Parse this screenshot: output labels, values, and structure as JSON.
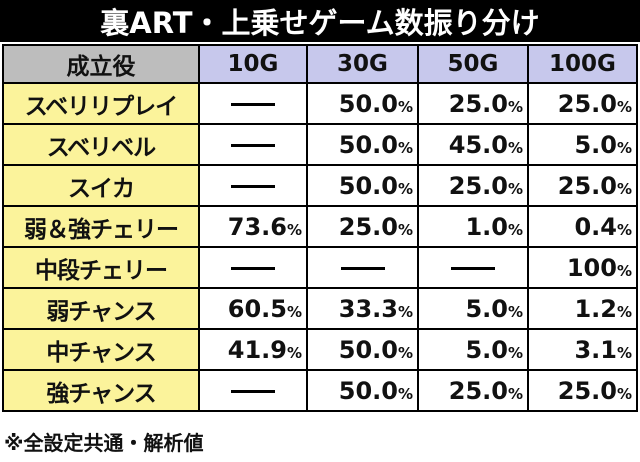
{
  "title": "裏ART・上乗せゲーム数振り分け",
  "columns": [
    "成立役",
    "10G",
    "30G",
    "50G",
    "100G"
  ],
  "rows": [
    {
      "role": "スベリリプレイ",
      "cells": [
        {
          "num": "",
          "unit": ""
        },
        {
          "num": "50.0",
          "unit": "%"
        },
        {
          "num": "25.0",
          "unit": "%"
        },
        {
          "num": "25.0",
          "unit": "%"
        }
      ]
    },
    {
      "role": "スベリベル",
      "cells": [
        {
          "num": "",
          "unit": ""
        },
        {
          "num": "50.0",
          "unit": "%"
        },
        {
          "num": "45.0",
          "unit": "%"
        },
        {
          "num": "5.0",
          "unit": "%"
        }
      ]
    },
    {
      "role": "スイカ",
      "cells": [
        {
          "num": "",
          "unit": ""
        },
        {
          "num": "50.0",
          "unit": "%"
        },
        {
          "num": "25.0",
          "unit": "%"
        },
        {
          "num": "25.0",
          "unit": "%"
        }
      ]
    },
    {
      "role": "弱＆強チェリー",
      "cells": [
        {
          "num": "73.6",
          "unit": "%"
        },
        {
          "num": "25.0",
          "unit": "%"
        },
        {
          "num": "1.0",
          "unit": "%"
        },
        {
          "num": "0.4",
          "unit": "%"
        }
      ]
    },
    {
      "role": "中段チェリー",
      "cells": [
        {
          "num": "",
          "unit": ""
        },
        {
          "num": "",
          "unit": ""
        },
        {
          "num": "",
          "unit": ""
        },
        {
          "num": "100",
          "unit": "%"
        }
      ]
    },
    {
      "role": "弱チャンス",
      "cells": [
        {
          "num": "60.5",
          "unit": "%"
        },
        {
          "num": "33.3",
          "unit": "%"
        },
        {
          "num": "5.0",
          "unit": "%"
        },
        {
          "num": "1.2",
          "unit": "%"
        }
      ]
    },
    {
      "role": "中チャンス",
      "cells": [
        {
          "num": "41.9",
          "unit": "%"
        },
        {
          "num": "50.0",
          "unit": "%"
        },
        {
          "num": "5.0",
          "unit": "%"
        },
        {
          "num": "3.1",
          "unit": "%"
        }
      ]
    },
    {
      "role": "強チャンス",
      "cells": [
        {
          "num": "",
          "unit": ""
        },
        {
          "num": "50.0",
          "unit": "%"
        },
        {
          "num": "25.0",
          "unit": "%"
        },
        {
          "num": "25.0",
          "unit": "%"
        }
      ]
    }
  ],
  "footnote": "※全設定共通・解析値",
  "colors": {
    "title_bg": "#000000",
    "header_bg": "#c7c8ec",
    "header_first_bg": "#bdbdbd",
    "role_bg": "#fbf39b"
  }
}
